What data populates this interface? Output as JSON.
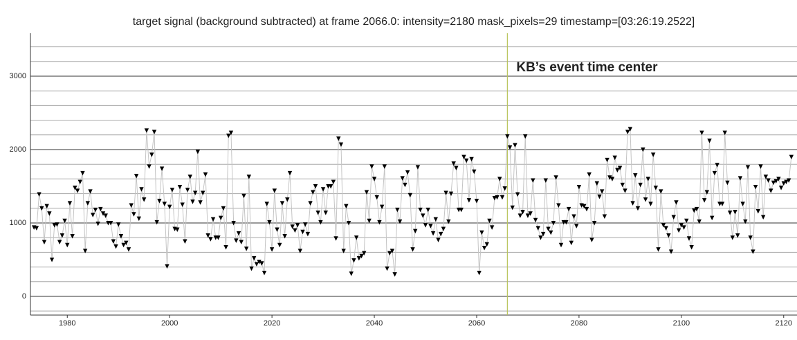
{
  "chart_data": {
    "type": "line",
    "title": "target signal (background subtracted) at frame 2066.0: intensity=2180 mask_pixels=29 timestamp=[03:26:19.2522]",
    "x": [
      1973.5,
      1974,
      1974.5,
      1975,
      1975.5,
      1976,
      1976.5,
      1977,
      1977.5,
      1978,
      1978.5,
      1979,
      1979.5,
      1980,
      1980.5,
      1981,
      1981.5,
      1982,
      1982.5,
      1983,
      1983.5,
      1984,
      1984.5,
      1985,
      1985.5,
      1986,
      1986.5,
      1987,
      1987.5,
      1988,
      1988.5,
      1989,
      1989.5,
      1990,
      1990.5,
      1991,
      1991.5,
      1992,
      1992.5,
      1993,
      1993.5,
      1994,
      1994.5,
      1995,
      1995.5,
      1996,
      1996.5,
      1997,
      1997.5,
      1998,
      1998.5,
      1999,
      1999.5,
      2000,
      2000.5,
      2001,
      2001.5,
      2002,
      2002.5,
      2003,
      2003.5,
      2004,
      2004.5,
      2005,
      2005.5,
      2006,
      2006.5,
      2007,
      2007.5,
      2008,
      2008.5,
      2009,
      2009.5,
      2010,
      2010.5,
      2011,
      2011.5,
      2012,
      2012.5,
      2013,
      2013.5,
      2014,
      2014.5,
      2015,
      2015.5,
      2016,
      2016.5,
      2017,
      2017.5,
      2018,
      2018.5,
      2019,
      2019.5,
      2020,
      2020.5,
      2021,
      2021.5,
      2022,
      2022.5,
      2023,
      2023.5,
      2024,
      2024.5,
      2025,
      2025.5,
      2026,
      2026.5,
      2027,
      2027.5,
      2028,
      2028.5,
      2029,
      2029.5,
      2030,
      2030.5,
      2031,
      2031.5,
      2032,
      2032.5,
      2033,
      2033.5,
      2034,
      2034.5,
      2035,
      2035.5,
      2036,
      2036.5,
      2037,
      2037.5,
      2038,
      2038.5,
      2039,
      2039.5,
      2040,
      2040.5,
      2041,
      2041.5,
      2042,
      2042.5,
      2043,
      2043.5,
      2044,
      2044.5,
      2045,
      2045.5,
      2046,
      2046.5,
      2047,
      2047.5,
      2048,
      2048.5,
      2049,
      2049.5,
      2050,
      2050.5,
      2051,
      2051.5,
      2052,
      2052.5,
      2053,
      2053.5,
      2054,
      2054.5,
      2055,
      2055.5,
      2056,
      2056.5,
      2057,
      2057.5,
      2058,
      2058.5,
      2059,
      2059.5,
      2060,
      2060.5,
      2061,
      2061.5,
      2062,
      2062.5,
      2063,
      2063.5,
      2064,
      2064.5,
      2065,
      2065.5,
      2066,
      2066.5,
      2067,
      2067.5,
      2068,
      2068.5,
      2069,
      2069.5,
      2070,
      2070.5,
      2071,
      2071.5,
      2072,
      2072.5,
      2073,
      2073.5,
      2074,
      2074.5,
      2075,
      2075.5,
      2076,
      2076.5,
      2077,
      2077.5,
      2078,
      2078.5,
      2079,
      2079.5,
      2080,
      2080.5,
      2081,
      2081.5,
      2082,
      2082.5,
      2083,
      2083.5,
      2084,
      2084.5,
      2085,
      2085.5,
      2086,
      2086.5,
      2087,
      2087.5,
      2088,
      2088.5,
      2089,
      2089.5,
      2090,
      2090.5,
      2091,
      2091.5,
      2092,
      2092.5,
      2093,
      2093.5,
      2094,
      2094.5,
      2095,
      2095.5,
      2096,
      2096.5,
      2097,
      2097.5,
      2098,
      2098.5,
      2099,
      2099.5,
      2100,
      2100.5,
      2101,
      2101.5,
      2102,
      2102.5,
      2103,
      2103.5,
      2104,
      2104.5,
      2105,
      2105.5,
      2106,
      2106.5,
      2107,
      2107.5,
      2108,
      2108.5,
      2109,
      2109.5,
      2110,
      2110.5,
      2111,
      2111.5,
      2112,
      2112.5,
      2113,
      2113.5,
      2114,
      2114.5,
      2115,
      2115.5,
      2116,
      2116.5,
      2117,
      2117.5,
      2118,
      2118.5,
      2119,
      2119.5,
      2120,
      2120.5,
      2121,
      2121.5
    ],
    "values": [
      940,
      930,
      1390,
      1200,
      740,
      1230,
      1130,
      500,
      970,
      980,
      740,
      830,
      1030,
      700,
      1270,
      820,
      1480,
      1440,
      1560,
      1680,
      620,
      1270,
      1430,
      1110,
      1180,
      990,
      1190,
      1130,
      1100,
      1000,
      1000,
      750,
      680,
      980,
      820,
      700,
      730,
      640,
      1240,
      1120,
      1640,
      1060,
      1460,
      1320,
      2260,
      1770,
      1930,
      2240,
      1010,
      1300,
      1740,
      1260,
      410,
      1220,
      1450,
      920,
      910,
      1490,
      1250,
      750,
      1450,
      1630,
      1290,
      1410,
      1970,
      1280,
      1410,
      1660,
      830,
      780,
      1050,
      800,
      800,
      1070,
      1200,
      670,
      2190,
      2230,
      1000,
      760,
      860,
      740,
      1370,
      650,
      1630,
      380,
      520,
      440,
      470,
      450,
      320,
      1260,
      1010,
      640,
      1440,
      910,
      700,
      1270,
      820,
      1320,
      1680,
      950,
      900,
      970,
      620,
      880,
      980,
      850,
      1270,
      1420,
      1500,
      1140,
      1010,
      1460,
      1140,
      1500,
      1500,
      1560,
      790,
      2150,
      2070,
      620,
      1230,
      1000,
      310,
      490,
      800,
      520,
      550,
      590,
      1420,
      1030,
      1770,
      1600,
      1350,
      1010,
      1220,
      1770,
      380,
      590,
      620,
      300,
      1180,
      1020,
      1610,
      1520,
      1690,
      1380,
      640,
      890,
      1760,
      1180,
      1100,
      970,
      1180,
      960,
      860,
      1050,
      770,
      850,
      920,
      1410,
      1020,
      1400,
      1810,
      1750,
      1180,
      1180,
      1900,
      1850,
      1310,
      1870,
      1700,
      1300,
      320,
      870,
      660,
      710,
      1030,
      940,
      1340,
      1350,
      1600,
      1350,
      1470,
      2180,
      2030,
      1210,
      2060,
      1390,
      1100,
      1150,
      2180,
      1100,
      1130,
      1580,
      1040,
      930,
      800,
      850,
      1580,
      920,
      870,
      1000,
      1620,
      1240,
      700,
      1010,
      1010,
      1190,
      730,
      1090,
      960,
      1490,
      1240,
      1230,
      1190,
      1660,
      770,
      1000,
      1540,
      1360,
      1430,
      1090,
      1860,
      1620,
      1600,
      1890,
      1720,
      1750,
      1520,
      1440,
      2240,
      2280,
      1270,
      1650,
      1200,
      1520,
      2000,
      1320,
      1600,
      1260,
      1930,
      1480,
      640,
      1430,
      970,
      930,
      830,
      610,
      1080,
      1280,
      900,
      970,
      940,
      1030,
      790,
      670,
      1170,
      1190,
      1020,
      2230,
      1310,
      1420,
      2120,
      1070,
      1680,
      1790,
      1260,
      1260,
      2230,
      1550,
      1140,
      800,
      1150,
      830,
      1610,
      1260,
      1020,
      1760,
      800,
      610,
      1490,
      1160,
      1770,
      1080,
      1630,
      1580,
      1440,
      1550,
      1570,
      1600,
      1480,
      1540,
      1560,
      1580,
      1900
    ],
    "line_color": "#c4c4c4",
    "marker": "triangle-down",
    "marker_color": "#000000",
    "xlim": [
      1972.8,
      2122.6
    ],
    "xticks": [
      1980,
      2000,
      2020,
      2040,
      2060,
      2080,
      2100,
      2120
    ],
    "ylim": [
      -255,
      3585
    ],
    "yticks": [
      0,
      1000,
      2000,
      3000
    ],
    "y_minor_ticks": [
      -200,
      200,
      400,
      600,
      800,
      1200,
      1400,
      1600,
      1800,
      2200,
      2400,
      2600,
      2800,
      3200,
      3400
    ],
    "grid": true,
    "vline": {
      "x": 2066,
      "color": "#b8c45a",
      "label": "KB’s event time center"
    }
  }
}
